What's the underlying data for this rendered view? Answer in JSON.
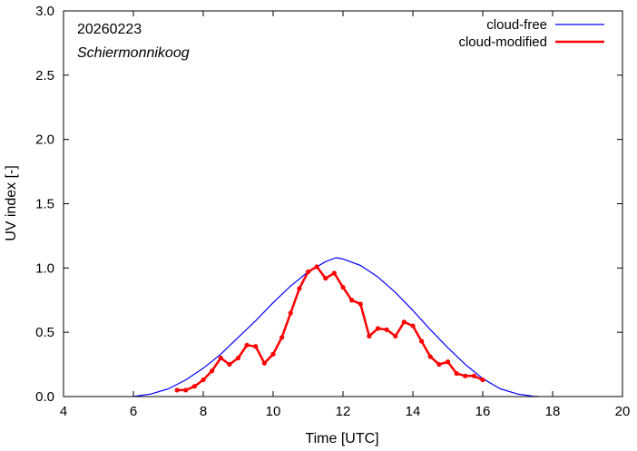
{
  "chart_data": {
    "type": "line",
    "title": "",
    "date_label": "20260223",
    "station_label": "Schiermonnikoog",
    "xlabel": "Time  [UTC]",
    "ylabel": "UV index  [-]",
    "xlim": [
      4,
      20
    ],
    "ylim": [
      0,
      3.0
    ],
    "x_ticks": [
      4,
      6,
      8,
      10,
      12,
      14,
      16,
      18,
      20
    ],
    "y_ticks": [
      0.0,
      0.5,
      1.0,
      1.5,
      2.0,
      2.5,
      3.0
    ],
    "x_tick_labels": [
      "4",
      "6",
      "8",
      "10",
      "12",
      "14",
      "16",
      "18",
      "20"
    ],
    "y_tick_labels": [
      "0.0",
      "0.5",
      "1.0",
      "1.5",
      "2.0",
      "2.5",
      "3.0"
    ],
    "legend_position": "top-right",
    "series": [
      {
        "name": "cloud-free",
        "color": "#0000ff",
        "marker": false,
        "x": [
          6.0,
          6.5,
          7.0,
          7.5,
          8.0,
          8.5,
          9.0,
          9.5,
          10.0,
          10.5,
          11.0,
          11.5,
          11.8,
          12.0,
          12.5,
          13.0,
          13.5,
          14.0,
          14.5,
          15.0,
          15.5,
          16.0,
          16.5,
          17.0,
          17.5,
          17.6
        ],
        "y": [
          0.0,
          0.02,
          0.06,
          0.13,
          0.22,
          0.33,
          0.46,
          0.59,
          0.73,
          0.86,
          0.97,
          1.05,
          1.08,
          1.07,
          1.02,
          0.93,
          0.81,
          0.67,
          0.52,
          0.38,
          0.25,
          0.14,
          0.06,
          0.02,
          0.0,
          0.0
        ]
      },
      {
        "name": "cloud-modified",
        "color": "#ff0000",
        "marker": true,
        "x": [
          7.25,
          7.5,
          7.75,
          8.0,
          8.25,
          8.5,
          8.75,
          9.0,
          9.25,
          9.5,
          9.75,
          10.0,
          10.25,
          10.5,
          10.75,
          11.0,
          11.25,
          11.5,
          11.75,
          12.0,
          12.25,
          12.5,
          12.75,
          13.0,
          13.25,
          13.5,
          13.75,
          14.0,
          14.25,
          14.5,
          14.75,
          15.0,
          15.25,
          15.5,
          15.75,
          16.0
        ],
        "y": [
          0.05,
          0.05,
          0.08,
          0.13,
          0.2,
          0.3,
          0.25,
          0.3,
          0.4,
          0.39,
          0.26,
          0.33,
          0.46,
          0.65,
          0.84,
          0.97,
          1.01,
          0.92,
          0.96,
          0.85,
          0.75,
          0.72,
          0.47,
          0.53,
          0.52,
          0.47,
          0.58,
          0.55,
          0.43,
          0.31,
          0.25,
          0.27,
          0.18,
          0.16,
          0.16,
          0.13
        ]
      }
    ]
  }
}
